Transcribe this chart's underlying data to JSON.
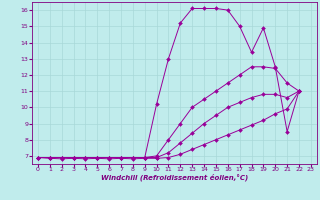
{
  "xlabel": "Windchill (Refroidissement éolien,°C)",
  "bg_color": "#c0ecec",
  "grid_color": "#a8d8d8",
  "line_color": "#990099",
  "xlim": [
    -0.5,
    23.5
  ],
  "ylim": [
    6.5,
    16.5
  ],
  "xticks": [
    0,
    1,
    2,
    3,
    4,
    5,
    6,
    7,
    8,
    9,
    10,
    11,
    12,
    13,
    14,
    15,
    16,
    17,
    18,
    19,
    20,
    21,
    22,
    23
  ],
  "yticks": [
    7,
    8,
    9,
    10,
    11,
    12,
    13,
    14,
    15,
    16
  ],
  "series": [
    {
      "x": [
        0,
        1,
        2,
        3,
        4,
        5,
        6,
        7,
        8,
        9,
        10,
        11,
        12,
        13,
        14,
        15,
        16,
        17,
        18,
        19,
        20,
        21,
        22
      ],
      "y": [
        6.9,
        6.9,
        6.9,
        6.9,
        6.9,
        6.9,
        6.9,
        6.9,
        6.9,
        6.9,
        10.2,
        13.0,
        15.2,
        16.1,
        16.1,
        16.1,
        16.0,
        15.0,
        13.4,
        14.9,
        12.5,
        8.5,
        11.0
      ]
    },
    {
      "x": [
        0,
        1,
        2,
        3,
        4,
        5,
        6,
        7,
        8,
        9,
        10,
        11,
        12,
        13,
        14,
        15,
        16,
        17,
        18,
        19,
        20,
        21,
        22
      ],
      "y": [
        6.9,
        6.9,
        6.9,
        6.9,
        6.9,
        6.9,
        6.9,
        6.9,
        6.9,
        6.9,
        7.0,
        8.0,
        9.0,
        10.0,
        10.5,
        11.0,
        11.5,
        12.0,
        12.5,
        12.5,
        12.4,
        11.5,
        11.0
      ]
    },
    {
      "x": [
        0,
        1,
        2,
        3,
        4,
        5,
        6,
        7,
        8,
        9,
        10,
        11,
        12,
        13,
        14,
        15,
        16,
        17,
        18,
        19,
        20,
        21,
        22
      ],
      "y": [
        6.9,
        6.9,
        6.9,
        6.9,
        6.9,
        6.9,
        6.9,
        6.9,
        6.9,
        6.9,
        6.9,
        7.2,
        7.8,
        8.4,
        9.0,
        9.5,
        10.0,
        10.3,
        10.6,
        10.8,
        10.8,
        10.6,
        11.0
      ]
    },
    {
      "x": [
        0,
        1,
        2,
        3,
        4,
        5,
        6,
        7,
        8,
        9,
        10,
        11,
        12,
        13,
        14,
        15,
        16,
        17,
        18,
        19,
        20,
        21,
        22
      ],
      "y": [
        6.9,
        6.85,
        6.82,
        6.85,
        6.82,
        6.85,
        6.82,
        6.85,
        6.82,
        6.85,
        6.85,
        6.9,
        7.1,
        7.4,
        7.7,
        8.0,
        8.3,
        8.6,
        8.9,
        9.2,
        9.6,
        9.9,
        11.0
      ]
    }
  ]
}
